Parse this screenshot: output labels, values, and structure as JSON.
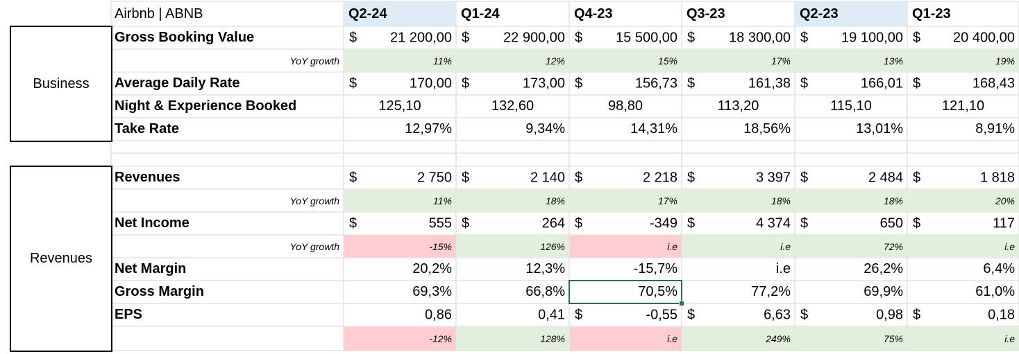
{
  "title": "Airbnb | ABNB",
  "quarters": [
    {
      "label": "Q2-24",
      "highlight": true
    },
    {
      "label": "Q1-24",
      "highlight": false
    },
    {
      "label": "Q4-23",
      "highlight": false
    },
    {
      "label": "Q3-23",
      "highlight": false
    },
    {
      "label": "Q2-23",
      "highlight": true
    },
    {
      "label": "Q1-23",
      "highlight": false
    }
  ],
  "currency_symbol": "$",
  "colors": {
    "positive_fill": "#e2efda",
    "negative_fill": "#ffccd2",
    "header_fill": "#ddebf7",
    "selection": "#217346"
  },
  "sections": {
    "business": "Business",
    "revenues": "Revenues"
  },
  "business": {
    "gross_booking_value": {
      "label": "Gross Booking Value",
      "values": [
        "21 200,00",
        "22 900,00",
        "15 500,00",
        "18 300,00",
        "19 100,00",
        "20 400,00"
      ]
    },
    "gbv_yoy": {
      "label": "YoY growth",
      "values": [
        "11%",
        "12%",
        "15%",
        "17%",
        "13%",
        "19%"
      ]
    },
    "average_daily_rate": {
      "label": "Average Daily Rate",
      "values": [
        "170,00",
        "173,00",
        "156,73",
        "161,38",
        "166,01",
        "168,43"
      ]
    },
    "nights_booked": {
      "label": "Night & Experience Booked",
      "values": [
        "125,10",
        "132,60",
        "98,80",
        "113,20",
        "115,10",
        "121,10"
      ]
    },
    "take_rate": {
      "label": "Take Rate",
      "values": [
        "12,97%",
        "9,34%",
        "14,31%",
        "18,56%",
        "13,01%",
        "8,91%"
      ]
    }
  },
  "revenues": {
    "revenues": {
      "label": "Revenues",
      "values": [
        "2 750",
        "2 140",
        "2 218",
        "3 397",
        "2 484",
        "1 818"
      ]
    },
    "revenues_yoy": {
      "label": "YoY growth",
      "values": [
        "11%",
        "18%",
        "17%",
        "18%",
        "18%",
        "20%"
      ]
    },
    "net_income": {
      "label": "Net Income",
      "values": [
        "555",
        "264",
        "-349",
        "4 374",
        "650",
        "117"
      ]
    },
    "net_income_yoy": {
      "label": "YoY growth",
      "values": [
        "-15%",
        "126%",
        "i.e",
        "i.e",
        "72%",
        "i.e"
      ],
      "status": [
        "neg",
        "pos",
        "neg",
        "pos",
        "pos",
        "pos"
      ]
    },
    "net_margin": {
      "label": "Net Margin",
      "values": [
        "20,2%",
        "12,3%",
        "-15,7%",
        "i.e",
        "26,2%",
        "6,4%"
      ]
    },
    "gross_margin": {
      "label": "Gross Margin",
      "values": [
        "69,3%",
        "66,8%",
        "70,5%",
        "77,2%",
        "69,9%",
        "61,0%"
      ]
    },
    "eps": {
      "label": "EPS",
      "values": [
        "0,86",
        "0,41",
        "-0,55",
        "6,63",
        "0,98",
        "0,18"
      ],
      "show_currency": [
        false,
        false,
        true,
        true,
        true,
        true
      ]
    },
    "eps_yoy": {
      "values": [
        "-12%",
        "128%",
        "i.e",
        "249%",
        "75%",
        "i.e"
      ],
      "status": [
        "neg",
        "pos",
        "neg",
        "pos",
        "pos",
        "pos"
      ]
    }
  }
}
